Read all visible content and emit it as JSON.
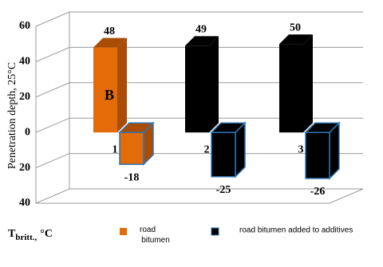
{
  "chart_data": {
    "type": "bar3d",
    "y_label": "Penetration depth, 25°C",
    "x_label": {
      "main": "T",
      "sub": "britt.,",
      "unit": "°C"
    },
    "categories": [
      "1",
      "2",
      "3"
    ],
    "series": [
      {
        "name": "road bitumen",
        "color": "#e36c09",
        "side_color": "#a84c06",
        "low_border": "#2e75b6",
        "values": [
          48,
          null,
          null
        ],
        "t_britt_values": [
          -18,
          null,
          null
        ]
      },
      {
        "name": "road bitumen added to additives",
        "color": "#000000",
        "side_color": "#000000",
        "low_border": "#2e75b6",
        "values": [
          null,
          49,
          50
        ],
        "t_britt_values": [
          null,
          -25,
          -26
        ]
      }
    ],
    "annotations": [
      {
        "text": "B"
      }
    ],
    "ylim": [
      -40,
      60
    ],
    "yticks": [
      {
        "value": -40,
        "label": "40"
      },
      {
        "value": -20,
        "label": "20"
      },
      0,
      20,
      40,
      60
    ],
    "grid": true
  }
}
